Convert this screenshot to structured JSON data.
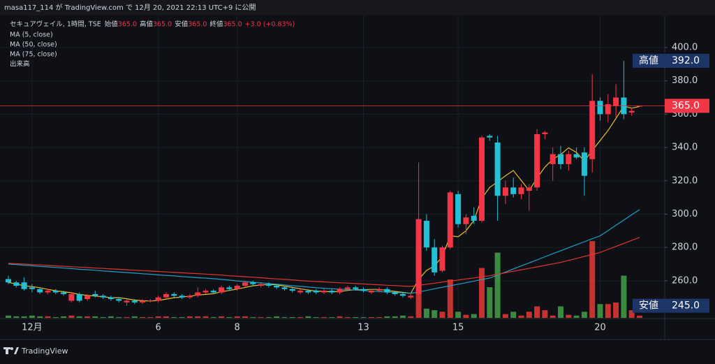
{
  "header": {
    "text": "masa117_114 が TradingView.com で 12月 20, 2021 22:13 UTC+9 に公開"
  },
  "chart_data": {
    "type": "candlestick",
    "title": "セキュアヴェイル, 1時間, TSE",
    "ohlc_legend": [
      [
        "始値",
        "365.0"
      ],
      [
        "高値",
        "365.0"
      ],
      [
        "安値",
        "365.0"
      ],
      [
        "終値",
        "365.0"
      ]
    ],
    "change": "+3.0 (+0.83%)",
    "categories": [
      null,
      null,
      null,
      "12月",
      null,
      null,
      null,
      null,
      null,
      null,
      null,
      null,
      null,
      null,
      null,
      null,
      null,
      null,
      null,
      "6",
      null,
      null,
      null,
      null,
      null,
      null,
      null,
      null,
      null,
      "8",
      null,
      null,
      null,
      null,
      null,
      null,
      null,
      null,
      null,
      null,
      null,
      null,
      null,
      null,
      null,
      "13",
      null,
      null,
      null,
      null,
      null,
      null,
      null,
      null,
      null,
      null,
      null,
      "15",
      null,
      null,
      null,
      null,
      null,
      null,
      null,
      null,
      null,
      null,
      null,
      null,
      null,
      null,
      null,
      null,
      null,
      "20",
      null,
      null,
      null,
      null,
      null
    ],
    "open": [
      261,
      259,
      259,
      256,
      255,
      253,
      254,
      253,
      248,
      252,
      249,
      252,
      251,
      250,
      249,
      247,
      248,
      247,
      248,
      248,
      250,
      252,
      251,
      250,
      251,
      253,
      254,
      253,
      256,
      255,
      257,
      259,
      257,
      258,
      257,
      256,
      255,
      253,
      254,
      254,
      253,
      254,
      253,
      255,
      256,
      255,
      253,
      254,
      255,
      253,
      252,
      250,
      252,
      296,
      280,
      266,
      280,
      312,
      294,
      299,
      296,
      347,
      343,
      311,
      316,
      312,
      314,
      316,
      348,
      330,
      336,
      330,
      336,
      337,
      333,
      368,
      360,
      365,
      370,
      361,
      365
    ],
    "high": [
      263,
      260,
      262,
      258,
      256,
      255,
      255,
      254,
      253,
      253,
      252,
      254,
      252,
      251,
      250,
      249,
      249,
      249,
      249,
      251,
      253,
      253,
      252,
      252,
      256,
      255,
      255,
      257,
      257,
      258,
      260,
      260,
      259,
      259,
      258,
      257,
      256,
      255,
      255,
      255,
      255,
      255,
      256,
      257,
      257,
      256,
      255,
      256,
      256,
      254,
      253,
      252,
      331,
      300,
      285,
      281,
      314,
      314,
      300,
      304,
      347,
      348,
      347,
      320,
      322,
      318,
      318,
      351,
      350,
      340,
      341,
      338,
      340,
      340,
      384,
      370,
      372,
      378,
      392,
      364,
      365
    ],
    "low": [
      258,
      256,
      254,
      253,
      252,
      252,
      252,
      251,
      247,
      247,
      248,
      250,
      249,
      248,
      247,
      245,
      246,
      246,
      247,
      247,
      249,
      250,
      249,
      249,
      250,
      252,
      252,
      252,
      254,
      254,
      256,
      257,
      256,
      256,
      255,
      254,
      253,
      252,
      252,
      252,
      252,
      252,
      252,
      254,
      254,
      253,
      252,
      253,
      252,
      251,
      250,
      249,
      251,
      278,
      263,
      265,
      279,
      292,
      288,
      294,
      295,
      344,
      296,
      306,
      310,
      309,
      302,
      314,
      345,
      320,
      327,
      326,
      333,
      311,
      325,
      356,
      355,
      358,
      357,
      359,
      365
    ],
    "close": [
      259,
      257,
      255,
      255,
      253,
      254,
      253,
      252,
      252,
      248,
      251,
      251,
      250,
      249,
      248,
      248,
      247,
      248,
      248,
      250,
      252,
      251,
      250,
      251,
      253,
      254,
      253,
      256,
      255,
      257,
      259,
      258,
      258,
      257,
      256,
      255,
      254,
      254,
      253,
      253,
      254,
      253,
      255,
      256,
      255,
      254,
      254,
      255,
      253,
      252,
      251,
      251,
      297,
      280,
      265,
      280,
      313,
      294,
      298,
      296,
      346,
      346,
      311,
      316,
      312,
      316,
      316,
      348,
      349,
      336,
      330,
      336,
      334,
      323,
      368,
      360,
      366,
      370,
      360,
      362,
      365
    ],
    "up_color": "#f23645",
    "down_color": "#22c1d6",
    "volume": {
      "name": "出来高",
      "values": [
        3,
        2,
        2,
        3,
        2,
        2,
        1,
        2,
        3,
        2,
        2,
        2,
        1,
        2,
        1,
        1,
        2,
        1,
        1,
        2,
        2,
        1,
        1,
        2,
        2,
        2,
        1,
        2,
        1,
        2,
        2,
        1,
        1,
        1,
        2,
        1,
        1,
        1,
        2,
        1,
        1,
        1,
        2,
        1,
        1,
        1,
        1,
        1,
        2,
        2,
        3,
        2,
        100,
        12,
        10,
        8,
        50,
        8,
        4,
        5,
        65,
        40,
        85,
        5,
        8,
        3,
        8,
        15,
        10,
        3,
        15,
        4,
        3,
        8,
        100,
        18,
        18,
        20,
        55,
        10,
        3
      ],
      "ylim": [
        0,
        394
      ],
      "up_color": "#e53935",
      "down_color": "#43a047"
    },
    "series": [
      {
        "name": "MA (5, close)",
        "color": "#e6c229",
        "values": [
          259,
          258,
          257,
          256.5,
          255.8,
          254.8,
          254.0,
          253.4,
          252.8,
          251.8,
          251.2,
          250.8,
          250.4,
          249.8,
          249.8,
          249.2,
          248.4,
          248.0,
          247.8,
          248.2,
          249.0,
          249.8,
          250.2,
          250.8,
          251.4,
          251.8,
          252.2,
          253.4,
          254.2,
          255.0,
          256.0,
          257.0,
          257.4,
          257.8,
          257.6,
          256.8,
          256.0,
          255.2,
          254.4,
          253.8,
          253.6,
          253.4,
          253.6,
          254.2,
          254.6,
          254.6,
          254.8,
          254.8,
          254.2,
          253.6,
          253.0,
          252.4,
          260.8,
          266.2,
          268.8,
          274.6,
          287.0,
          286.4,
          290.0,
          296.2,
          309.4,
          316.0,
          319.4,
          323.0,
          326.2,
          320.2,
          314.2,
          321.6,
          328.2,
          333.0,
          335.8,
          339.8,
          337.0,
          331.8,
          338.2,
          344.2,
          350.2,
          357.4,
          364.8,
          363.6,
          364.6
        ]
      },
      {
        "name": "MA (50, close)",
        "color": "#1e9fc7",
        "values": [
          270.0,
          269.7,
          269.3,
          269.0,
          268.6,
          268.3,
          268.0,
          267.6,
          267.3,
          266.9,
          266.6,
          266.3,
          265.9,
          265.6,
          265.2,
          264.9,
          264.6,
          264.2,
          263.9,
          263.5,
          263.2,
          262.9,
          262.5,
          262.2,
          261.8,
          261.6,
          261.2,
          260.8,
          260.4,
          259.9,
          259.5,
          259.1,
          258.7,
          258.3,
          257.9,
          257.5,
          257.0,
          256.6,
          256.2,
          255.8,
          255.5,
          255.2,
          255.0,
          254.7,
          254.4,
          254.1,
          253.8,
          253.5,
          253.2,
          253.0,
          252.7,
          252.4,
          253.3,
          254.2,
          255.2,
          256.1,
          257.0,
          257.9,
          258.8,
          259.8,
          260.7,
          261.6,
          263.4,
          265.2,
          267.1,
          268.9,
          270.7,
          272.5,
          274.4,
          276.2,
          278.0,
          279.8,
          281.6,
          283.4,
          285.2,
          287.0,
          290.1,
          293.3,
          296.4,
          299.6,
          302.7
        ]
      },
      {
        "name": "MA (75, close)",
        "color": "#e0362c",
        "values": [
          270.5,
          270.2,
          270.0,
          269.7,
          269.5,
          269.2,
          268.9,
          268.7,
          268.4,
          268.2,
          267.9,
          267.6,
          267.4,
          267.1,
          266.9,
          266.6,
          266.3,
          266.1,
          265.8,
          265.6,
          265.3,
          265.0,
          264.8,
          264.5,
          264.3,
          264.0,
          263.7,
          263.4,
          263.0,
          262.7,
          262.4,
          262.1,
          261.8,
          261.4,
          261.1,
          260.8,
          260.5,
          260.1,
          259.8,
          259.5,
          259.3,
          259.0,
          258.8,
          258.6,
          258.3,
          258.1,
          257.8,
          257.6,
          257.3,
          257.1,
          256.8,
          256.6,
          257.2,
          257.9,
          258.5,
          259.2,
          259.8,
          260.4,
          261.1,
          261.7,
          262.4,
          263.0,
          263.9,
          264.8,
          265.7,
          266.6,
          267.4,
          268.3,
          269.2,
          270.1,
          271.0,
          272.2,
          273.4,
          274.6,
          275.8,
          277.0,
          278.8,
          280.6,
          282.4,
          284.2,
          286.0
        ]
      }
    ],
    "ylim": [
      237.7,
      419.3
    ],
    "yticks": [
      {
        "value": 260,
        "label": "260.0"
      },
      {
        "value": 280,
        "label": "280.0"
      },
      {
        "value": 300,
        "label": "300.0"
      },
      {
        "value": 320,
        "label": "320.0"
      },
      {
        "value": 340,
        "label": "340.0"
      },
      {
        "value": 360,
        "label": "360.0"
      },
      {
        "value": 380,
        "label": "380.0"
      },
      {
        "value": 400,
        "label": "400.0"
      }
    ],
    "grid": true,
    "price_markers": [
      {
        "name": "高値",
        "value": 392,
        "label": "392.0",
        "color": "#1c3566"
      },
      {
        "name": "安値",
        "value": 245,
        "label": "245.0",
        "color": "#1c3566"
      },
      {
        "value": 365,
        "label": "365.0",
        "color": "#f23645",
        "line": true
      }
    ]
  },
  "footer": {
    "logo": "TradingView"
  }
}
